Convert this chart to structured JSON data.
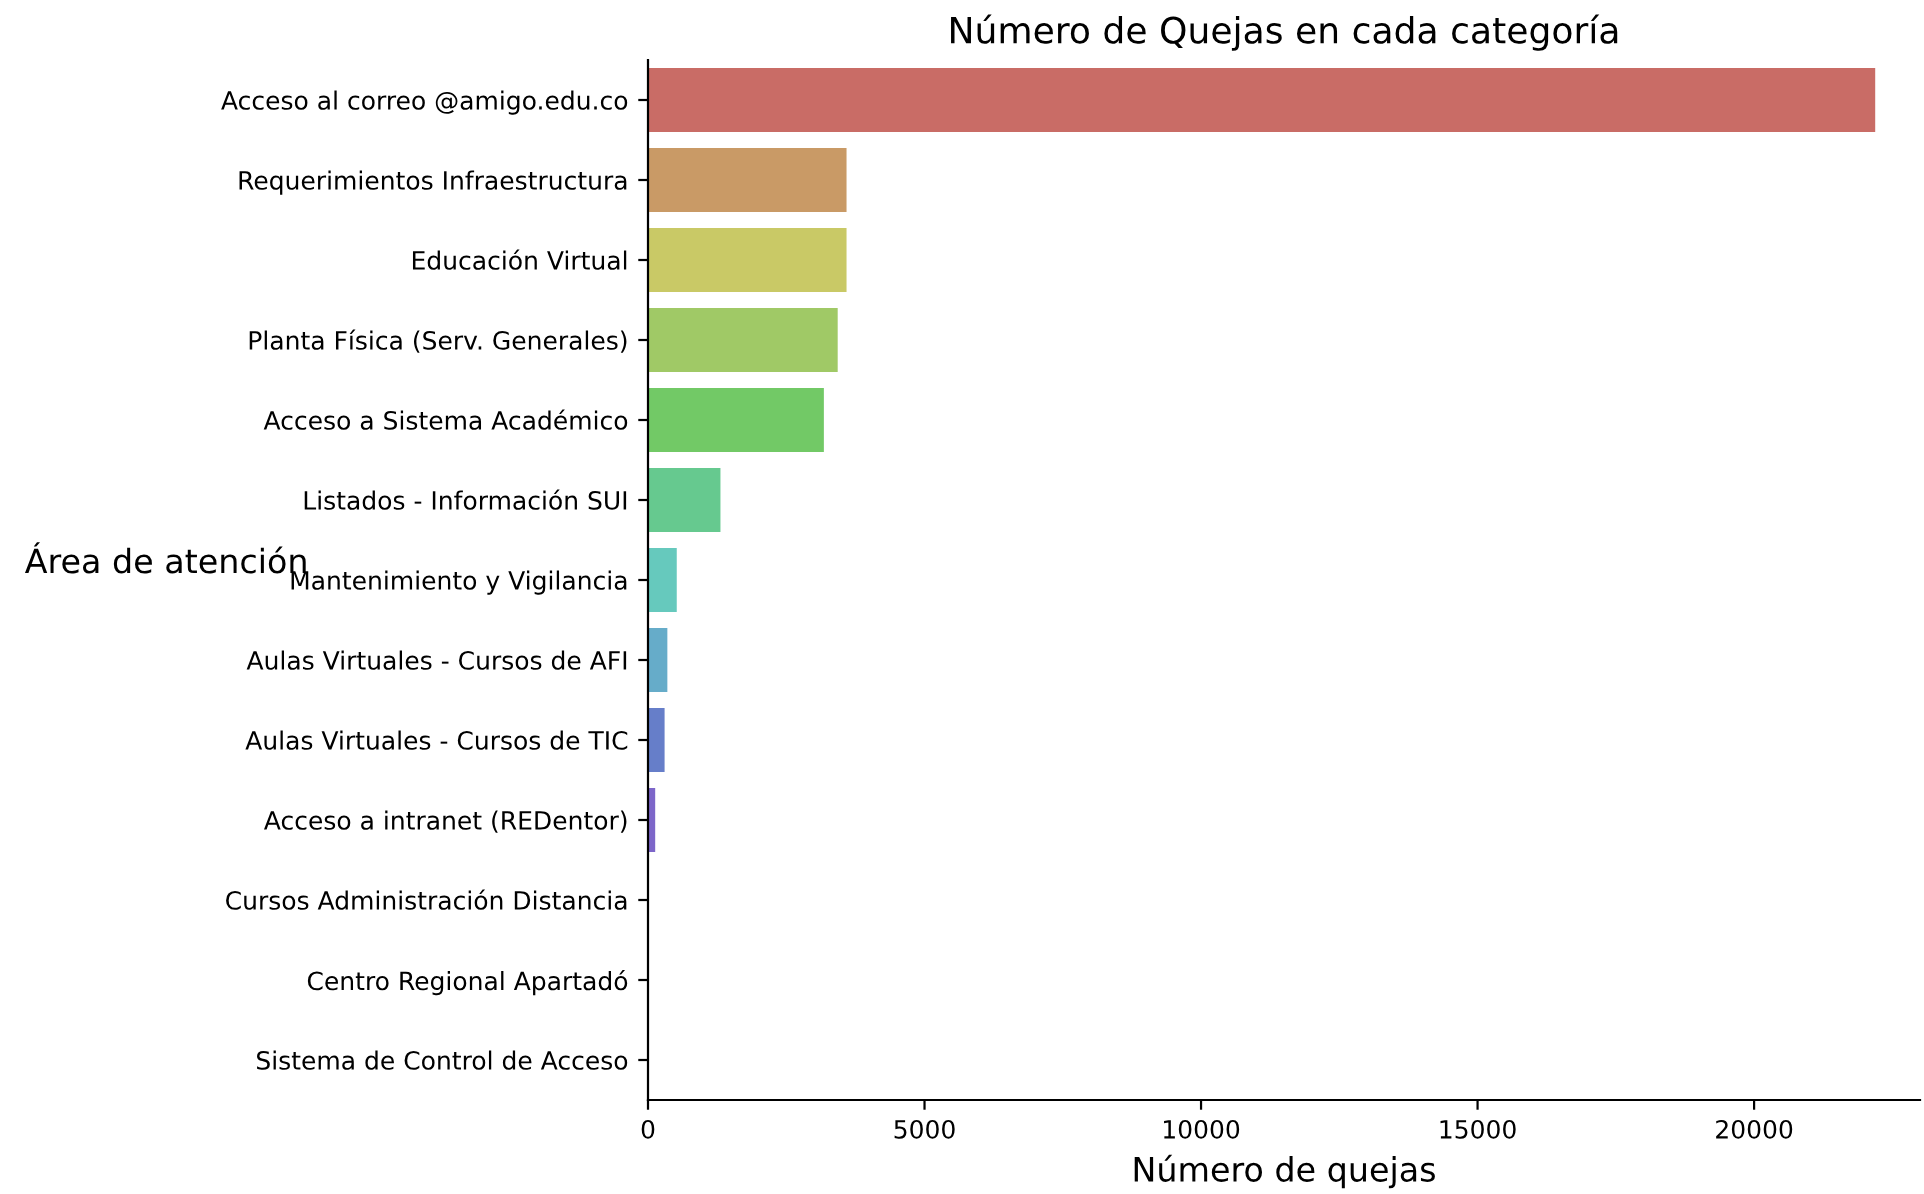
{
  "chart_data": {
    "type": "bar",
    "orientation": "horizontal",
    "title": "Número de Quejas en cada categoría",
    "xlabel": "Número de quejas",
    "ylabel": "Área de atención",
    "categories": [
      "Acceso al correo @amigo.edu.co",
      "Requerimientos Infraestructura",
      "Educación Virtual",
      "Planta Física (Serv. Generales)",
      "Acceso a Sistema Académico",
      "Listados - Información SUI",
      "Mantenimiento y Vigilancia",
      "Aulas Virtuales - Cursos de AFI",
      "Aulas Virtuales - Cursos de TIC",
      "Acceso a intranet (REDentor)",
      "Cursos Administración Distancia",
      "Centro Regional Apartadó",
      "Sistema de Control de Acceso"
    ],
    "values": [
      22190,
      3590,
      3590,
      3430,
      3180,
      1310,
      520,
      350,
      300,
      130,
      null,
      0,
      0
    ],
    "colors": [
      "#c96c66",
      "#c99a66",
      "#c9c966",
      "#a0c966",
      "#72c966",
      "#66c98f",
      "#66c9bd",
      "#66acc9",
      "#667ec9",
      "#7d66c9",
      "#ab66c9",
      "#c966bb",
      "#c9668c"
    ],
    "xlim": [
      0,
      23000
    ],
    "xticks": [
      0,
      5000,
      10000,
      15000,
      20000
    ],
    "grid": false,
    "legend": false
  }
}
